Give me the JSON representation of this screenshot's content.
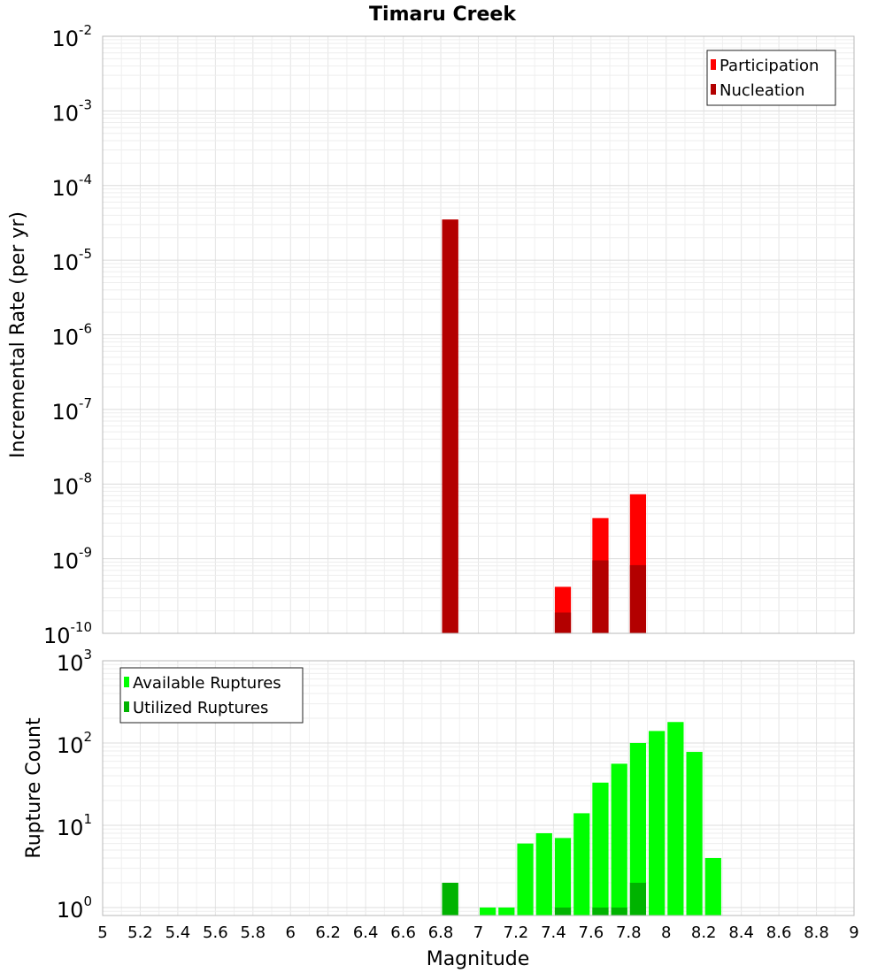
{
  "title": "Timaru Creek",
  "chart_data": [
    {
      "type": "bar",
      "title": "Timaru Creek",
      "xlabel": "Magnitude",
      "ylabel": "Incremental Rate (per yr)",
      "yscale": "log",
      "ylim": [
        1e-10,
        0.01
      ],
      "xlim": [
        5,
        9
      ],
      "bin_width": 0.1,
      "grid": true,
      "legend_position": "top-right",
      "series": [
        {
          "name": "Participation",
          "color": "#ff0000",
          "x": [
            6.85,
            7.45,
            7.65,
            7.85
          ],
          "values": [
            3.5e-05,
            4.2e-10,
            3.5e-09,
            7.3e-09
          ]
        },
        {
          "name": "Nucleation",
          "color": "#b30000",
          "x": [
            6.85,
            7.45,
            7.65,
            7.85
          ],
          "values": [
            3.5e-05,
            1.9e-10,
            9.5e-10,
            8.2e-10
          ]
        }
      ],
      "y_ticks": [
        {
          "base": "10",
          "exp": "-2",
          "value": 0.01
        },
        {
          "base": "10",
          "exp": "-3",
          "value": 0.001
        },
        {
          "base": "10",
          "exp": "-4",
          "value": 0.0001
        },
        {
          "base": "10",
          "exp": "-5",
          "value": 1e-05
        },
        {
          "base": "10",
          "exp": "-6",
          "value": 1e-06
        },
        {
          "base": "10",
          "exp": "-7",
          "value": 1e-07
        },
        {
          "base": "10",
          "exp": "-8",
          "value": 1e-08
        },
        {
          "base": "10",
          "exp": "-9",
          "value": 1e-09
        },
        {
          "base": "10",
          "exp": "-10",
          "value": 1e-10
        }
      ]
    },
    {
      "type": "bar",
      "xlabel": "Magnitude",
      "ylabel": "Rupture Count",
      "yscale": "log",
      "ylim": [
        0.8,
        1000
      ],
      "xlim": [
        5,
        9
      ],
      "bin_width": 0.1,
      "grid": true,
      "legend_position": "top-left",
      "series": [
        {
          "name": "Available Ruptures",
          "color": "#00ff00",
          "x": [
            6.85,
            7.05,
            7.15,
            7.25,
            7.35,
            7.45,
            7.55,
            7.65,
            7.75,
            7.85,
            7.95,
            8.05,
            8.15,
            8.25
          ],
          "values": [
            2,
            1,
            1,
            6,
            8,
            7,
            14,
            33,
            56,
            100,
            140,
            180,
            78,
            4
          ]
        },
        {
          "name": "Utilized Ruptures",
          "color": "#00b300",
          "x": [
            6.85,
            7.45,
            7.65,
            7.75,
            7.85
          ],
          "values": [
            2,
            1,
            1,
            1,
            2
          ]
        }
      ],
      "y_ticks": [
        {
          "base": "10",
          "exp": "3",
          "value": 1000
        },
        {
          "base": "10",
          "exp": "2",
          "value": 100
        },
        {
          "base": "10",
          "exp": "1",
          "value": 10
        },
        {
          "base": "10",
          "exp": "0",
          "value": 1
        }
      ],
      "x_ticks": [
        "5",
        "5.2",
        "5.4",
        "5.6",
        "5.8",
        "6",
        "6.2",
        "6.4",
        "6.6",
        "6.8",
        "7",
        "7.2",
        "7.4",
        "7.6",
        "7.8",
        "8",
        "8.2",
        "8.4",
        "8.6",
        "8.8",
        "9"
      ]
    }
  ]
}
